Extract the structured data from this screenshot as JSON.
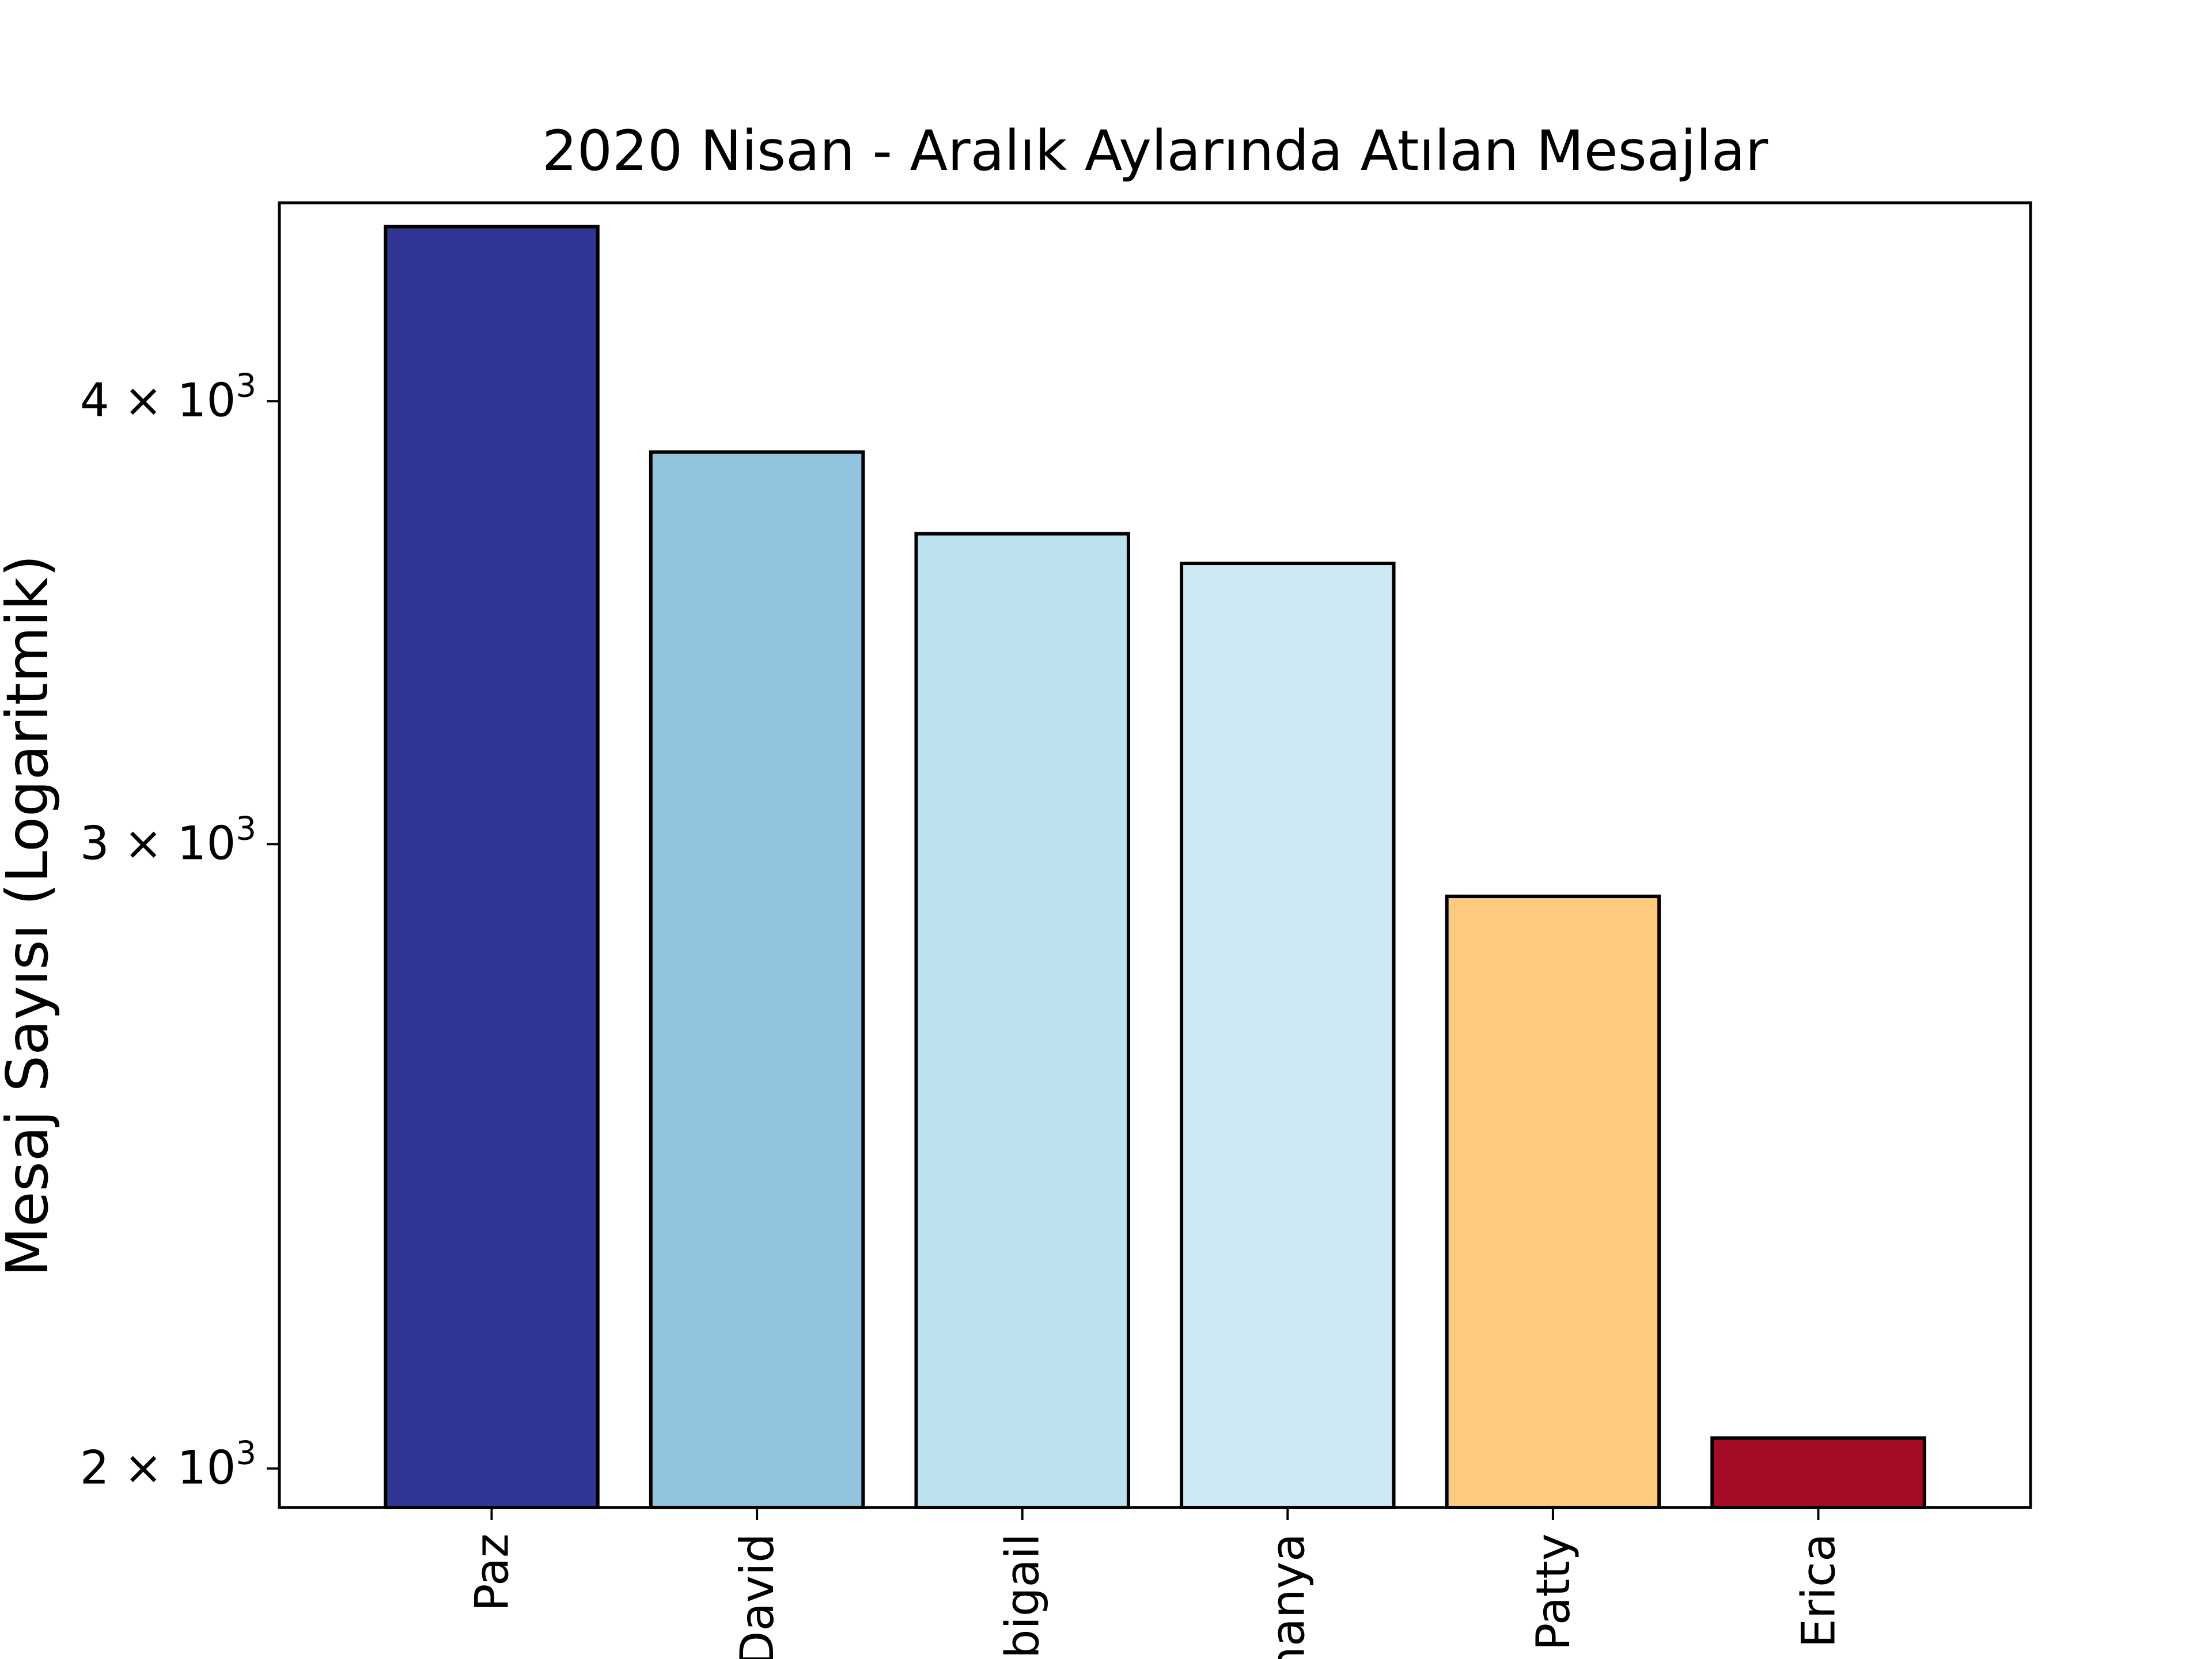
{
  "chart_data": {
    "type": "bar",
    "title": "2020 Nisan - Aralık Aylarında Atılan Mesajlar",
    "xlabel": "",
    "ylabel": "Mesaj Sayısı (Logaritmik)",
    "yscale": "log",
    "ylim": [
      1950,
      4550
    ],
    "grid": false,
    "categories": [
      "Paz",
      "David",
      "Abigail",
      "Shanya",
      "Patty",
      "Erica"
    ],
    "values": [
      4480,
      3870,
      3670,
      3600,
      2900,
      2040
    ],
    "colors": [
      "#313695",
      "#91c2de",
      "#bbe1ec",
      "#cde8f2",
      "#fdca7e",
      "#a50a26"
    ],
    "edge_color": "#000000",
    "yticks": [
      {
        "value": 2000,
        "mantissa": "2",
        "base": "10",
        "exponent": "3"
      },
      {
        "value": 3000,
        "mantissa": "3",
        "base": "10",
        "exponent": "3"
      },
      {
        "value": 4000,
        "mantissa": "4",
        "base": "10",
        "exponent": "3"
      }
    ],
    "ytick_times": "×"
  }
}
